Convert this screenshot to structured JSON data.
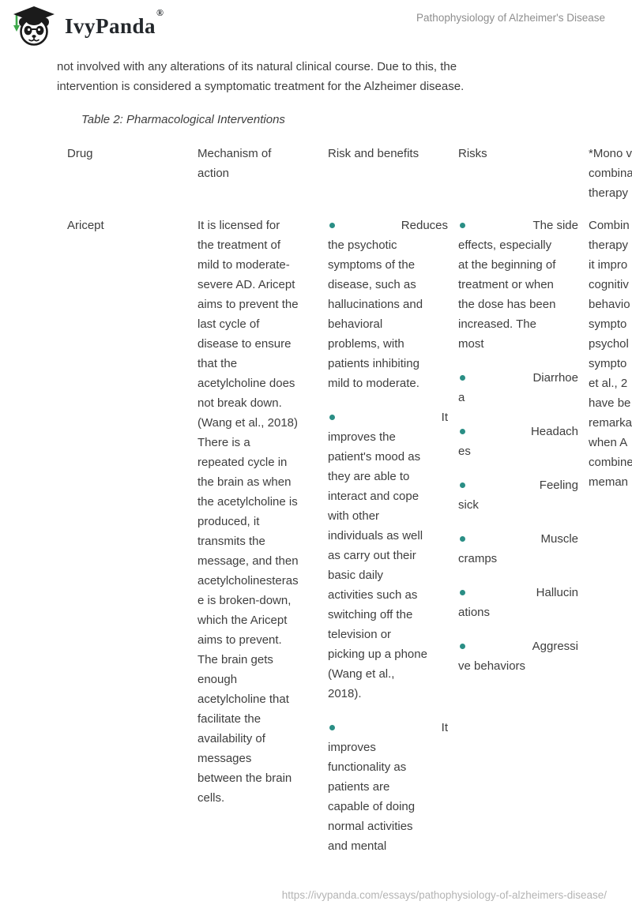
{
  "site_header": {
    "logo_text": "IvyPanda",
    "registered_mark": "®",
    "doc_title": "Pathophysiology of Alzheimer's Disease"
  },
  "intro": {
    "lines": [
      "not involved with any alterations of its natural clinical course. Due to this, the",
      "intervention is considered a symptomatic treatment for the Alzheimer disease."
    ]
  },
  "table_caption": "Table 2: Pharmacological Interventions",
  "table": {
    "columns": [
      {
        "id": "drug",
        "header_lines": [
          "Drug"
        ],
        "lines": [
          "Aricept"
        ]
      },
      {
        "id": "mechanism-of-action",
        "header_lines": [
          "Mechanism of",
          "action"
        ],
        "lines": [
          "It is licensed for",
          "the treatment of",
          "mild to moderate-",
          "severe AD. Aricept",
          "aims to prevent the",
          "last cycle of",
          "disease to ensure",
          "that the",
          "acetylcholine does",
          "not break down.",
          "(Wang et al., 2018)",
          "There is a",
          "repeated cycle in",
          "the brain as when",
          "the acetylcholine is",
          "produced, it",
          "transmits the",
          "message, and then",
          "acetylcholinesteras",
          "e is broken-down,",
          "which the Aricept",
          "aims to prevent.",
          "The brain gets",
          "enough",
          "acetylcholine that",
          "facilitate the",
          "availability of",
          "messages",
          "between the brain",
          "cells."
        ]
      },
      {
        "id": "risk-and-benefits",
        "header_lines": [
          "Risk and benefits"
        ],
        "items": [
          {
            "lead": "Reduces",
            "lines": [
              "the psychotic",
              "symptoms of the",
              "disease, such as",
              "hallucinations and",
              "behavioral",
              "problems, with",
              "patients inhibiting",
              "mild to moderate."
            ]
          },
          {
            "lead": "It",
            "lines": [
              "improves the",
              "patient's mood as",
              "they are able to",
              "interact and cope",
              "with other",
              "individuals as well",
              "as carry out their",
              "basic daily",
              "activities such as",
              "switching off the",
              "television or",
              "picking up a phone",
              "(Wang et al.,",
              "2018)."
            ]
          },
          {
            "lead": "It",
            "lines": [
              "improves",
              "functionality as",
              "patients are",
              "capable of doing",
              "normal activities",
              "and mental"
            ]
          }
        ]
      },
      {
        "id": "risks",
        "header_lines": [
          "Risks"
        ],
        "items": [
          {
            "lead": "The side",
            "lines": [
              "effects, especially",
              "at the beginning of",
              "treatment or when",
              "the dose has been",
              "increased. The",
              "most"
            ]
          },
          {
            "lead": "Diarrhoe",
            "lines": [
              "a"
            ]
          },
          {
            "lead": "Headach",
            "lines": [
              "es"
            ]
          },
          {
            "lead": "Feeling",
            "lines": [
              "sick"
            ]
          },
          {
            "lead": "Muscle",
            "lines": [
              "cramps"
            ]
          },
          {
            "lead": "Hallucin",
            "lines": [
              "ations"
            ]
          },
          {
            "lead": "Aggressi",
            "lines": [
              "ve behaviors"
            ]
          }
        ]
      },
      {
        "id": "mono-vs-combination-therapy",
        "header_lines": [
          "*Mono v",
          "combina",
          "therapy"
        ],
        "lines": [
          "Combin",
          "therapy",
          "it impro",
          "cognitiv",
          "behavio",
          "sympto",
          "psychol",
          "sympto",
          "et al., 2",
          "have be",
          "remarka",
          "when A",
          "combine",
          "meman"
        ]
      }
    ]
  },
  "footer": {
    "url": "https://ivypanda.com/essays/pathophysiology-of-alzheimers-disease/"
  },
  "colors": {
    "bullet": "#2a8e85",
    "body_text": "#3e3e3e",
    "header_muted": "#8e8e8e",
    "footer_muted": "#b4b4b4",
    "logo_green": "#3da84a",
    "logo_black": "#1b1b1b"
  }
}
